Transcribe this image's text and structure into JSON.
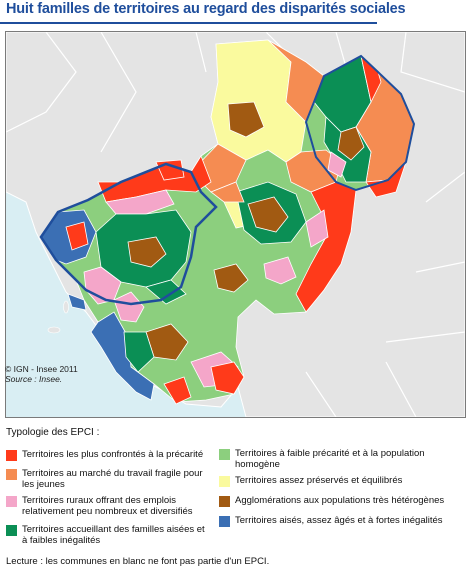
{
  "title": "Huit familles de territoires au regard des disparités sociales",
  "credit": "© IGN - Insee 2011",
  "source": "Source : Insee.",
  "legend_title": "Typologie des EPCI :",
  "legend": [
    {
      "label": "Territoires les plus confrontés à la précarité",
      "color": "#ff3a1a"
    },
    {
      "label": "Territoires au marché du travail fragile pour les jeunes",
      "color": "#f58c52"
    },
    {
      "label": "Territoires ruraux offrant des emplois relativement peu nombreux et diversifiés",
      "color": "#f4a6c9"
    },
    {
      "label": "Territoires accueillant des familles aisées et à faibles inégalités",
      "color": "#0b8f55"
    },
    {
      "label": "Territoires à faible précarité et à la population homogène",
      "color": "#8ccf7e"
    },
    {
      "label": "Territoires assez préservés et équilibrés",
      "color": "#fafa9e"
    },
    {
      "label": "Agglomérations aux populations très hétérogènes",
      "color": "#a15a12"
    },
    {
      "label": "Territoires aisés, assez âgés et à fortes inégalités",
      "color": "#3b6fb4"
    }
  ],
  "note": "Lecture : les communes en blanc ne font pas partie d'un EPCI.",
  "colors": {
    "sea": "#d9eef3",
    "land_outside": "#e4e4e4",
    "boundary": "#1f4e9c",
    "title": "#1f4e9c"
  }
}
